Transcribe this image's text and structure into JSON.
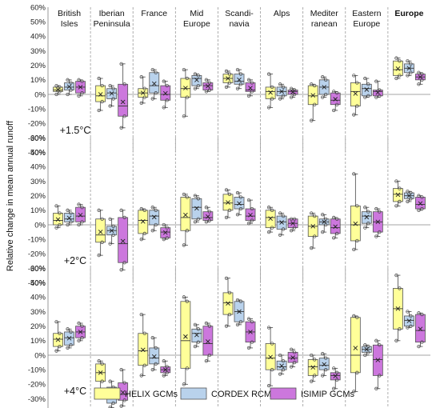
{
  "chart_data": {
    "type": "boxplot",
    "ylabel": "Relative change in mean annual runoff",
    "regions": [
      "British Isles",
      "Iberian Peninsula",
      "France",
      "Mid Europe",
      "Scandinavia",
      "Alps",
      "Mediterranean",
      "Eastern Europe",
      "Europe"
    ],
    "region_labels": [
      [
        "British",
        "Isles"
      ],
      [
        "Iberian",
        "Peninsula"
      ],
      [
        "France"
      ],
      [
        "Mid",
        "Europe"
      ],
      [
        "Scandi-",
        "navia"
      ],
      [
        "Alps"
      ],
      [
        "Mediter",
        "ranean"
      ],
      [
        "Eastern",
        "Europe"
      ],
      [
        "Europe"
      ]
    ],
    "bold_region": "Europe",
    "series": [
      {
        "name": "HELIX GCMs",
        "color": "#FFFF99"
      },
      {
        "name": "CORDEX RCMs",
        "color": "#B9D2EC"
      },
      {
        "name": "ISIMIP GCMs",
        "color": "#CC77DD"
      }
    ],
    "panels": [
      {
        "scenario": "+1.5°C",
        "ylim": [
          -0.4,
          0.6
        ],
        "yticks": [
          "-40%",
          "-30%",
          "-20%",
          "-10%",
          "0%",
          "10%",
          "20%",
          "30%",
          "40%",
          "50%",
          "60%"
        ],
        "boxes": [
          [
            [
              0.0,
              0.02,
              0.03,
              0.05,
              0.06
            ],
            [
              0.0,
              0.03,
              0.05,
              0.08,
              0.1
            ],
            [
              -0.01,
              0.01,
              0.05,
              0.09,
              0.1
            ]
          ],
          [
            [
              -0.11,
              -0.05,
              -0.01,
              0.06,
              0.11
            ],
            [
              -0.08,
              -0.03,
              0.01,
              0.04,
              0.06
            ],
            [
              -0.23,
              -0.15,
              -0.08,
              0.07,
              0.21
            ]
          ],
          [
            [
              -0.06,
              -0.02,
              0.01,
              0.04,
              0.12
            ],
            [
              -0.03,
              0.01,
              0.06,
              0.15,
              0.17
            ],
            [
              -0.09,
              -0.04,
              0.0,
              0.06,
              0.09
            ]
          ],
          [
            [
              -0.15,
              -0.02,
              0.04,
              0.11,
              0.17
            ],
            [
              0.04,
              0.06,
              0.11,
              0.13,
              0.14
            ],
            [
              0.02,
              0.03,
              0.06,
              0.08,
              0.1
            ]
          ],
          [
            [
              0.05,
              0.08,
              0.11,
              0.14,
              0.16
            ],
            [
              0.04,
              0.07,
              0.09,
              0.14,
              0.17
            ],
            [
              -0.01,
              0.02,
              0.03,
              0.08,
              0.1
            ]
          ],
          [
            [
              -0.09,
              -0.03,
              0.02,
              0.05,
              0.14
            ],
            [
              -0.03,
              -0.01,
              0.02,
              0.05,
              0.07
            ],
            [
              -0.02,
              0.0,
              0.02,
              0.03,
              0.04
            ]
          ],
          [
            [
              -0.18,
              -0.07,
              -0.01,
              0.06,
              0.07
            ],
            [
              -0.02,
              0.0,
              0.05,
              0.1,
              0.12
            ],
            [
              -0.11,
              -0.07,
              -0.04,
              0.01,
              0.02
            ]
          ],
          [
            [
              -0.14,
              -0.08,
              0.02,
              0.08,
              0.13
            ],
            [
              -0.02,
              -0.01,
              0.04,
              0.07,
              0.11
            ],
            [
              -0.02,
              -0.01,
              0.02,
              0.03,
              0.09
            ]
          ],
          [
            [
              0.11,
              0.13,
              0.17,
              0.23,
              0.25
            ],
            [
              0.13,
              0.15,
              0.18,
              0.21,
              0.23
            ],
            [
              0.07,
              0.1,
              0.12,
              0.14,
              0.15
            ]
          ]
        ]
      },
      {
        "scenario": "+2°C",
        "ylim": [
          -0.4,
          0.6
        ],
        "yticks": [
          "-40%",
          "-30%",
          "-20%",
          "-10%",
          "0%",
          "10%",
          "20%",
          "30%",
          "40%",
          "50%",
          "60%"
        ],
        "boxes": [
          [
            [
              -0.02,
              0.0,
              0.03,
              0.08,
              0.13
            ],
            [
              0.0,
              0.02,
              0.04,
              0.08,
              0.1
            ],
            [
              0.0,
              0.02,
              0.06,
              0.12,
              0.14
            ]
          ],
          [
            [
              -0.21,
              -0.12,
              -0.07,
              0.04,
              0.1
            ],
            [
              -0.13,
              -0.07,
              -0.04,
              -0.01,
              0.04
            ],
            [
              -0.31,
              -0.26,
              -0.13,
              0.05,
              0.1
            ]
          ],
          [
            [
              -0.1,
              -0.06,
              0.03,
              0.1,
              0.11
            ],
            [
              -0.04,
              0.0,
              0.06,
              0.1,
              0.12
            ],
            [
              -0.1,
              -0.09,
              -0.05,
              -0.02,
              0.0
            ]
          ],
          [
            [
              -0.14,
              -0.04,
              0.05,
              0.19,
              0.21
            ],
            [
              0.02,
              0.04,
              0.12,
              0.18,
              0.2
            ],
            [
              0.02,
              0.03,
              0.05,
              0.09,
              0.12
            ]
          ],
          [
            [
              0.05,
              0.1,
              0.15,
              0.21,
              0.24
            ],
            [
              0.07,
              0.11,
              0.14,
              0.19,
              0.22
            ],
            [
              0.01,
              0.03,
              0.06,
              0.11,
              0.17
            ]
          ],
          [
            [
              -0.05,
              -0.02,
              0.05,
              0.1,
              0.12
            ],
            [
              -0.07,
              -0.03,
              0.02,
              0.06,
              0.08
            ],
            [
              -0.04,
              -0.02,
              0.01,
              0.04,
              0.04
            ]
          ],
          [
            [
              -0.16,
              -0.08,
              -0.01,
              0.06,
              0.08
            ],
            [
              -0.05,
              0.0,
              0.02,
              0.04,
              0.07
            ],
            [
              -0.09,
              -0.06,
              -0.02,
              0.04,
              0.05
            ]
          ],
          [
            [
              -0.17,
              -0.11,
              0.0,
              0.13,
              0.35
            ],
            [
              -0.02,
              0.01,
              0.06,
              0.09,
              0.12
            ],
            [
              -0.08,
              -0.05,
              0.02,
              0.09,
              0.11
            ]
          ],
          [
            [
              0.13,
              0.16,
              0.21,
              0.25,
              0.3
            ],
            [
              0.16,
              0.18,
              0.2,
              0.22,
              0.23
            ],
            [
              0.1,
              0.11,
              0.14,
              0.19,
              0.2
            ]
          ]
        ]
      },
      {
        "scenario": "+4°C",
        "ylim": [
          -0.4,
          0.6
        ],
        "yticks": [
          "-40%",
          "-30%",
          "-20%",
          "-10%",
          "0%",
          "10%",
          "20%",
          "30%",
          "40%",
          "50%",
          "60%"
        ],
        "boxes": [
          [
            [
              0.03,
              0.06,
              0.11,
              0.15,
              0.23
            ],
            [
              0.05,
              0.07,
              0.12,
              0.16,
              0.18
            ],
            [
              0.1,
              0.12,
              0.16,
              0.2,
              0.22
            ]
          ],
          [
            [
              -0.26,
              -0.18,
              -0.12,
              -0.06,
              -0.04
            ],
            [
              -0.36,
              -0.33,
              -0.3,
              -0.22,
              -0.18
            ],
            [
              -0.35,
              -0.31,
              -0.27,
              -0.19,
              -0.1
            ]
          ],
          [
            [
              -0.14,
              -0.07,
              0.03,
              0.15,
              0.28
            ],
            [
              -0.1,
              -0.06,
              -0.02,
              0.05,
              0.12
            ],
            [
              -0.14,
              -0.12,
              -0.1,
              -0.08,
              -0.04
            ]
          ],
          [
            [
              -0.2,
              -0.09,
              0.1,
              0.37,
              0.4
            ],
            [
              0.06,
              0.09,
              0.15,
              0.18,
              0.21
            ],
            [
              -0.04,
              0.0,
              0.08,
              0.2,
              0.22
            ]
          ],
          [
            [
              0.2,
              0.28,
              0.36,
              0.43,
              0.53
            ],
            [
              0.21,
              0.23,
              0.3,
              0.37,
              0.38
            ],
            [
              0.05,
              0.09,
              0.16,
              0.23,
              0.25
            ]
          ],
          [
            [
              -0.21,
              -0.1,
              -0.02,
              0.08,
              0.19
            ],
            [
              -0.13,
              -0.1,
              -0.08,
              -0.04,
              0.0
            ],
            [
              -0.08,
              -0.05,
              -0.02,
              0.02,
              0.04
            ]
          ],
          [
            [
              -0.18,
              -0.14,
              -0.08,
              -0.03,
              0.0
            ],
            [
              -0.14,
              -0.1,
              -0.07,
              -0.02,
              0.01
            ],
            [
              -0.23,
              -0.17,
              -0.14,
              -0.12,
              -0.09
            ]
          ],
          [
            [
              -0.25,
              -0.12,
              0.0,
              0.26,
              0.27
            ],
            [
              0.0,
              0.02,
              0.04,
              0.06,
              0.07
            ],
            [
              -0.23,
              -0.14,
              -0.03,
              0.07,
              0.1
            ]
          ],
          [
            [
              0.1,
              0.18,
              0.32,
              0.46,
              0.55
            ],
            [
              0.19,
              0.2,
              0.24,
              0.27,
              0.3
            ],
            [
              0.06,
              0.09,
              0.17,
              0.28,
              0.29
            ]
          ]
        ]
      }
    ]
  }
}
